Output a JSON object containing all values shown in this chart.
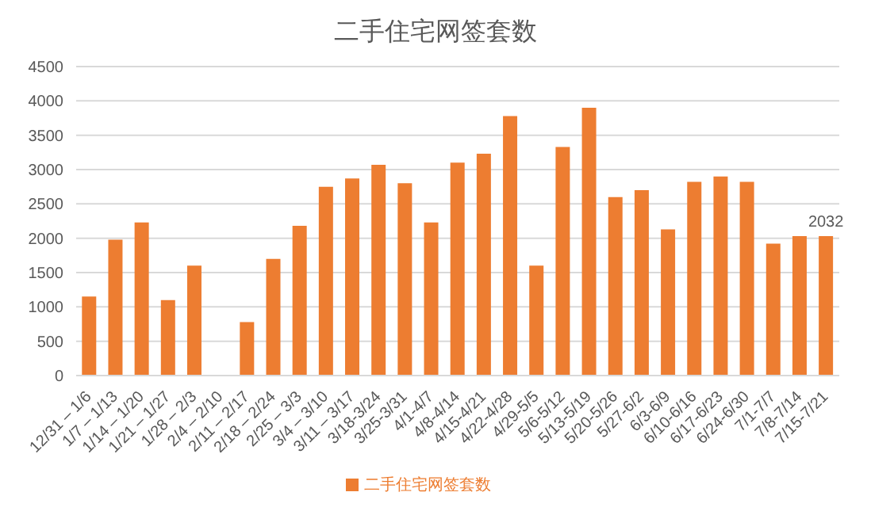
{
  "chart_data": {
    "type": "bar",
    "title": "二手住宅网签套数",
    "categories": [
      "12/31 – 1/6",
      "1/7 – 1/13",
      "1/14 – 1/20",
      "1/21 – 1/27",
      "1/28 – 2/3",
      "2/4 – 2/10",
      "2/11 – 2/17",
      "2/18 – 2/24",
      "2/25 – 3/3",
      "3/4 – 3/10",
      "3/11 – 3/17",
      "3/18-3/24",
      "3/25-3/31",
      "4/1-4/7",
      "4/8-4/14",
      "4/15-4/21",
      "4/22-4/28",
      "4/29-5/5",
      "5/6-5/12",
      "5/13-5/19",
      "5/20-5/26",
      "5/27-6/2",
      "6/3-6/9",
      "6/10-6/16",
      "6/17-6/23",
      "6/24-6/30",
      "7/1-7/7",
      "7/8-7/14",
      "7/15-7/21"
    ],
    "series": [
      {
        "name": "二手住宅网签套数",
        "color": "#ed7d31",
        "values": [
          1150,
          1980,
          2230,
          1100,
          1600,
          null,
          780,
          1700,
          2180,
          2750,
          2870,
          3070,
          2800,
          2230,
          3100,
          3230,
          3780,
          1600,
          3330,
          3900,
          2600,
          2700,
          2130,
          2820,
          2900,
          2820,
          1920,
          2030,
          2032
        ],
        "value_labels": [
          null,
          null,
          null,
          null,
          null,
          null,
          null,
          null,
          null,
          null,
          null,
          null,
          null,
          null,
          null,
          null,
          null,
          null,
          null,
          null,
          null,
          null,
          null,
          null,
          null,
          null,
          null,
          null,
          "2032"
        ]
      }
    ],
    "ylim": [
      0,
      4500
    ],
    "yticks": [
      0,
      500,
      1000,
      1500,
      2000,
      2500,
      3000,
      3500,
      4000,
      4500
    ],
    "grid": "y",
    "legend": "bottom"
  }
}
